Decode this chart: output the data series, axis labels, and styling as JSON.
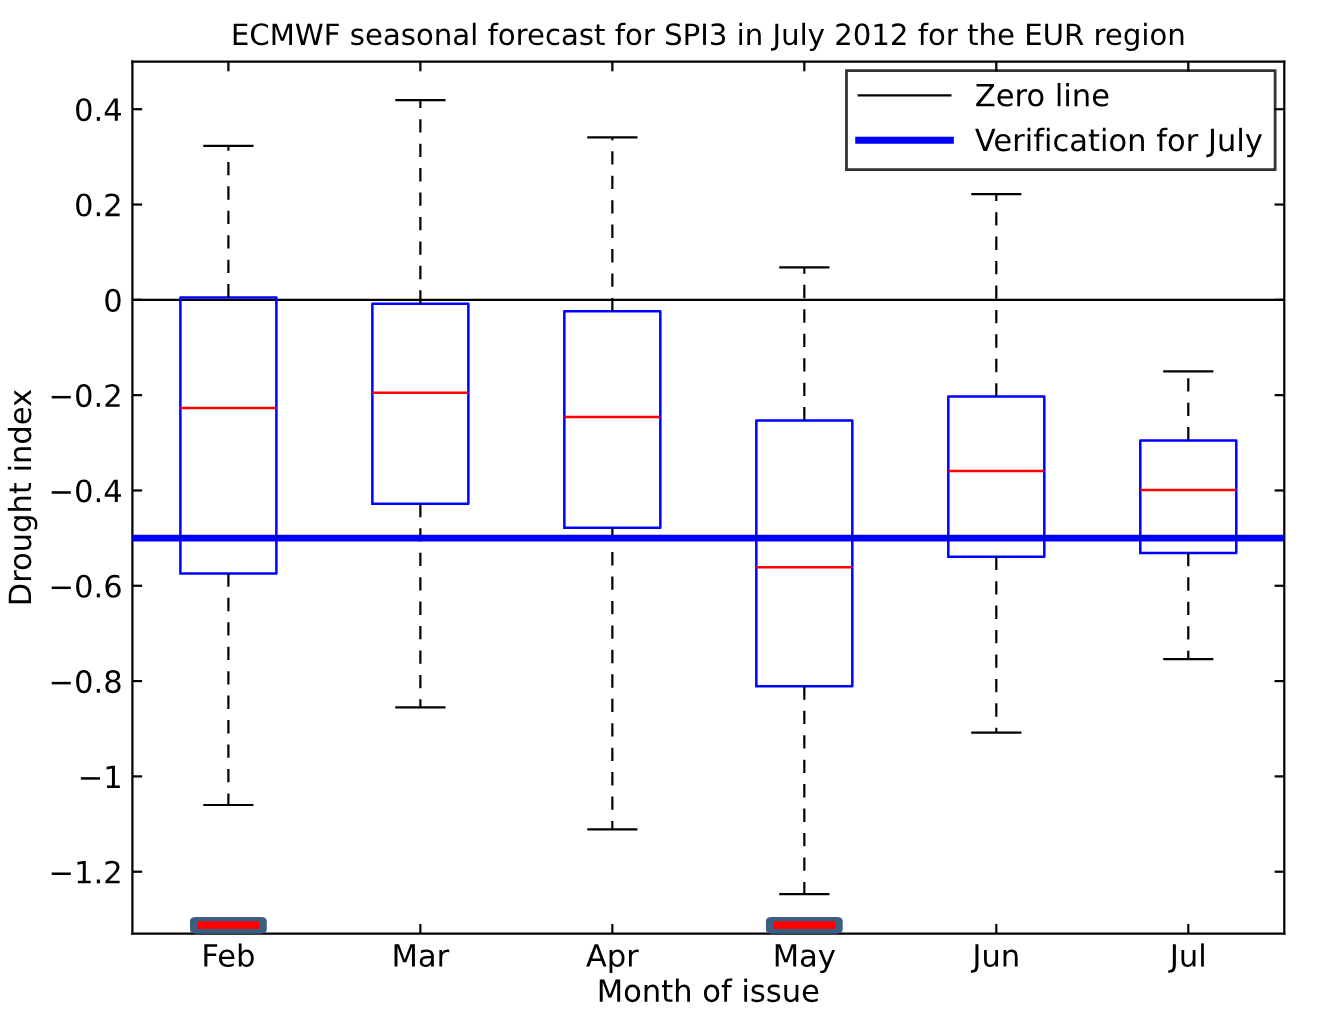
{
  "chart_data": {
    "type": "box",
    "title": "ECMWF seasonal forecast for SPI3 in July 2012 for the EUR region",
    "xlabel": "Month of issue",
    "ylabel": "Drought index",
    "categories": [
      "Feb",
      "Mar",
      "Apr",
      "May",
      "Jun",
      "Jul"
    ],
    "series": [
      {
        "color": "#0000ff",
        "boxes": [
          {
            "low": -1.06,
            "q1": -0.574,
            "median": -0.227,
            "q3": 0.005,
            "high": 0.323
          },
          {
            "low": -0.855,
            "q1": -0.428,
            "median": -0.195,
            "q3": -0.008,
            "high": 0.419
          },
          {
            "low": -1.111,
            "q1": -0.478,
            "median": -0.246,
            "q3": -0.024,
            "high": 0.341
          },
          {
            "low": -1.247,
            "q1": -0.811,
            "median": -0.561,
            "q3": -0.253,
            "high": 0.068
          },
          {
            "low": -0.908,
            "q1": -0.539,
            "median": -0.359,
            "q3": -0.203,
            "high": 0.222
          },
          {
            "low": -0.754,
            "q1": -0.531,
            "median": -0.399,
            "q3": -0.295,
            "high": -0.15
          }
        ]
      }
    ],
    "ref_lines": [
      {
        "axis": "y",
        "value": 0,
        "label": "Zero line",
        "color": "#000000"
      },
      {
        "axis": "y",
        "value": -0.5,
        "label": "Verification for July",
        "color": "#0000ff"
      }
    ],
    "ylim": [
      -1.33,
      0.5
    ],
    "yticks": [
      -1.2,
      -1,
      -0.8,
      -0.6,
      -0.4,
      -0.2,
      0,
      0.2,
      0.4
    ],
    "grid": false,
    "legend": "top right"
  }
}
